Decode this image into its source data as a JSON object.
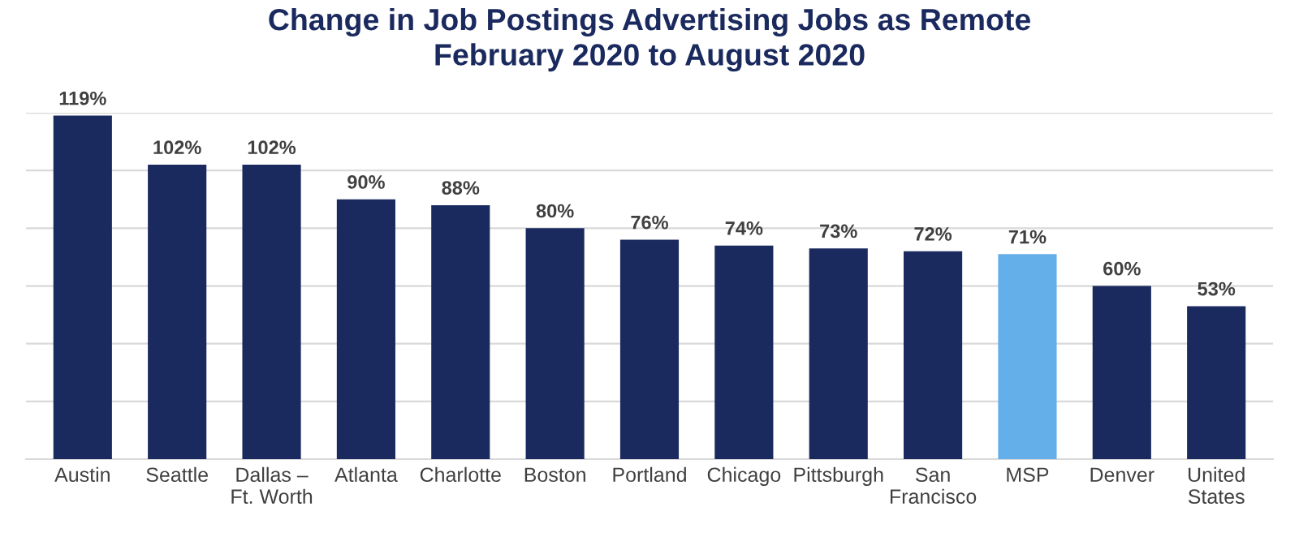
{
  "chart_data": {
    "type": "bar",
    "title": "Change in Job Postings Advertising Jobs as Remote\nFebruary 2020 to August 2020",
    "categories": [
      "Austin",
      "Seattle",
      "Dallas –\nFt. Worth",
      "Atlanta",
      "Charlotte",
      "Boston",
      "Portland",
      "Chicago",
      "Pittsburgh",
      "San\nFrancisco",
      "MSP",
      "Denver",
      "United\nStates"
    ],
    "values": [
      119,
      102,
      102,
      90,
      88,
      80,
      76,
      74,
      73,
      72,
      71,
      60,
      53
    ],
    "colors": [
      "#1b2a5e",
      "#1b2a5e",
      "#1b2a5e",
      "#1b2a5e",
      "#1b2a5e",
      "#1b2a5e",
      "#1b2a5e",
      "#1b2a5e",
      "#1b2a5e",
      "#1b2a5e",
      "#64aeea",
      "#1b2a5e",
      "#1b2a5e"
    ],
    "value_labels": [
      "119%",
      "102%",
      "102%",
      "90%",
      "88%",
      "80%",
      "76%",
      "74%",
      "73%",
      "72%",
      "71%",
      "60%",
      "53%"
    ],
    "ylim": [
      0,
      120
    ],
    "yticks": [
      {
        "value": 0,
        "label": null
      },
      {
        "value": 20,
        "label": null
      },
      {
        "value": 40,
        "label": null
      },
      {
        "value": 60,
        "label": null
      },
      {
        "value": 80,
        "label": null
      },
      {
        "value": 100,
        "label": null
      },
      {
        "value": 120,
        "label": null
      }
    ],
    "tick_labels": "x",
    "grid": "y"
  }
}
